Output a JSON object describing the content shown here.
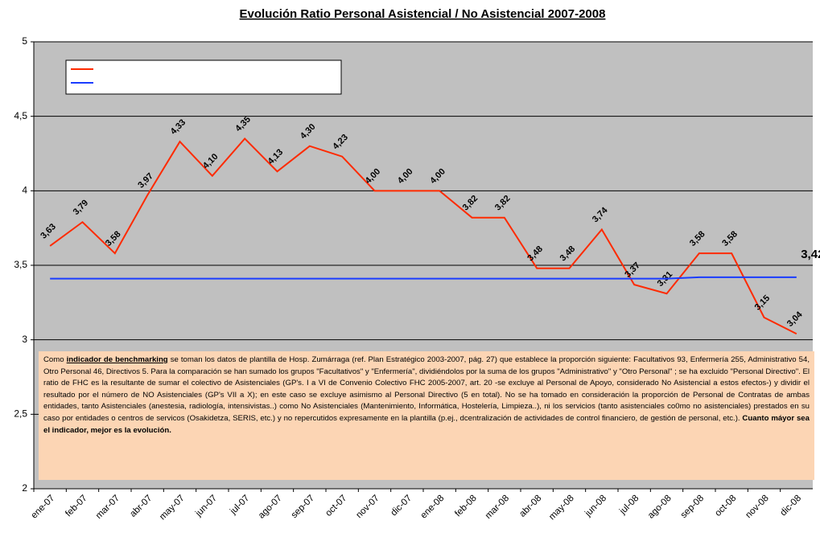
{
  "chart_data": {
    "type": "line",
    "title": "Evolución Ratio Personal Asistencial / No Asistencial 2007-2008",
    "categories": [
      "ene-07",
      "feb-07",
      "mar-07",
      "abr-07",
      "may-07",
      "jun-07",
      "jul-07",
      "ago-07",
      "sep-07",
      "oct-07",
      "nov-07",
      "dic-07",
      "ene-08",
      "feb-08",
      "mar-08",
      "abr-08",
      "may-08",
      "jun-08",
      "jul-08",
      "ago-08",
      "sep-08",
      "oct-08",
      "nov-08",
      "dic-08"
    ],
    "series": [
      {
        "color": "#ff2a00",
        "values": [
          3.63,
          3.79,
          3.58,
          3.97,
          4.33,
          4.1,
          4.35,
          4.13,
          4.3,
          4.23,
          4.0,
          4.0,
          4.0,
          3.82,
          3.82,
          3.48,
          3.48,
          3.74,
          3.37,
          3.31,
          3.58,
          3.58,
          3.15,
          3.04
        ],
        "value_labels": [
          "3,63",
          "3,79",
          "3,58",
          "3,97",
          "4,33",
          "4,10",
          "4,35",
          "4,13",
          "4,30",
          "4,23",
          "4,00",
          "4,00",
          "4,00",
          "3,82",
          "3,82",
          "3,48",
          "3,48",
          "3,74",
          "3,37",
          "3,31",
          "3,58",
          "3,58",
          "3,15",
          "3,04"
        ]
      },
      {
        "color": "#1a3cff",
        "values": [
          3.41,
          3.41,
          3.41,
          3.41,
          3.41,
          3.41,
          3.41,
          3.41,
          3.41,
          3.41,
          3.41,
          3.41,
          3.41,
          3.41,
          3.41,
          3.41,
          3.41,
          3.41,
          3.41,
          3.41,
          3.42,
          3.42,
          3.42,
          3.42
        ],
        "value_labels": [
          null,
          null,
          null,
          null,
          null,
          null,
          null,
          null,
          null,
          null,
          null,
          null,
          null,
          null,
          null,
          null,
          null,
          null,
          null,
          null,
          null,
          null,
          null,
          "3,42"
        ]
      }
    ],
    "ylim": [
      2,
      5
    ],
    "yticks": [
      2,
      {
        "value": 2.5,
        "label": "2,5"
      },
      3,
      {
        "value": 3.5,
        "label": "3,5"
      },
      4,
      {
        "value": 4.5,
        "label": "4,5"
      },
      5
    ],
    "grid": true,
    "annotation": [
      {
        "text": "Como ",
        "bold": false
      },
      {
        "text": "indicador de benchmarking",
        "bold": true,
        "underline": true
      },
      {
        "text": " se toman los datos de plantilla de Hosp. Zumárraga (ref. Plan Estratégico 2003-2007, pág. 27) que establece la proporción siguiente: Facultativos 93, Enfermería 255, Administrativo 54, Otro Personal 46, Directivos 5. Para la comparación se han sumado los grupos \"Facultativos\" y \"Enfermería\", dividiéndolos por la suma de los grupos \"Administrativo\" y \"Otro Personal\" ; se ha excluido \"Personal Directivo\". El ratio de FHC es la resultante de sumar el colectivo de Asistenciales (GP's. I a VI de Convenio Colectivo FHC 2005-2007, art. 20 -se excluye al Personal de Apoyo, considerado No Asistencial a estos efectos-) y dividir el resultado por el número de NO Asistenciales (GP's VII a X); en este caso se excluye asimismo al Personal Directivo (5 en total). No se ha tomado en consideración la proporción de Personal de Contratas de ambas entidades, tanto Asistenciales (anestesia, radiología, intensivistas..) como No Asistenciales (Mantenimiento, Informática, Hostelería, Limpieza..), ni los servicios (tanto asistenciales co0mo no asistenciales) prestados en su caso por entidades o centros de servicos (Osakidetza, SERIS, etc.) y no repercutidos expresamente en la plantilla (p.ej., dcentralización de actividades de control financiero, de gestión de personal, etc.). ",
        "bold": false
      },
      {
        "text": "Cuanto máyor sea el indicador, mejor es la evolución.",
        "bold": true
      }
    ]
  }
}
